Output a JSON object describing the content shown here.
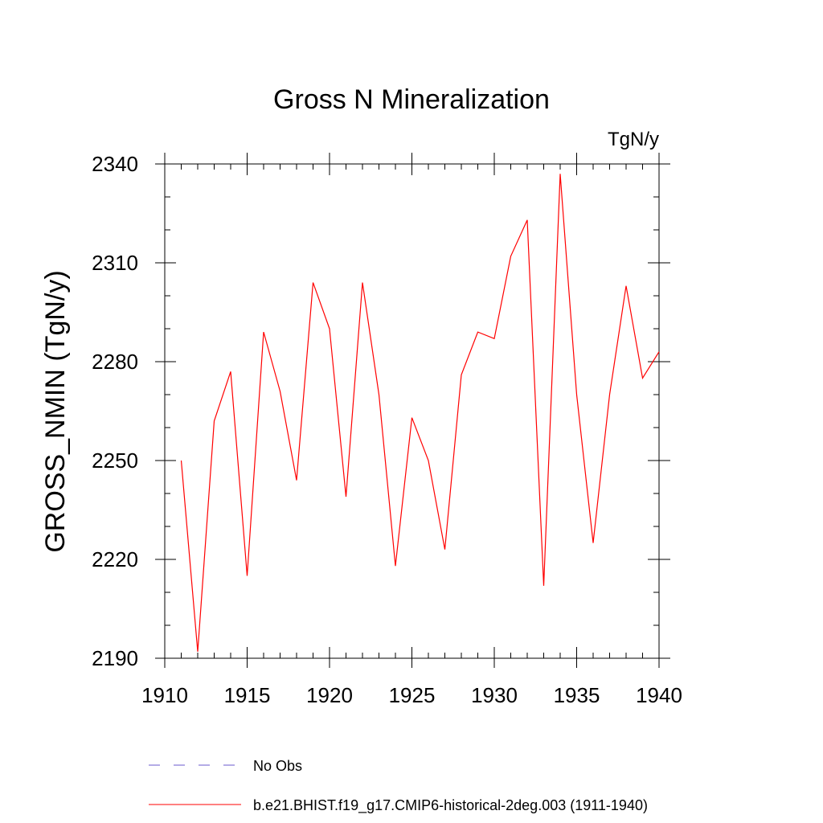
{
  "chart_data": {
    "type": "line",
    "title": "Gross N Mineralization",
    "units_label": "TgN/y",
    "ylabel": "GROSS_NMIN  (TgN/y)",
    "xlabel": "",
    "xlim": [
      1910,
      1940
    ],
    "ylim": [
      2190,
      2340
    ],
    "xticks": [
      1910,
      1915,
      1920,
      1925,
      1930,
      1935,
      1940
    ],
    "yticks": [
      2190,
      2220,
      2250,
      2280,
      2310,
      2340
    ],
    "grid": false,
    "legend_position": "bottom",
    "series": [
      {
        "name": "b.e21.BHIST.f19_g17.CMIP6-historical-2deg.003 (1911-1940)",
        "color": "#ff0000",
        "dash": "solid",
        "x": [
          1911,
          1912,
          1913,
          1914,
          1915,
          1916,
          1917,
          1918,
          1919,
          1920,
          1921,
          1922,
          1923,
          1924,
          1925,
          1926,
          1927,
          1928,
          1929,
          1930,
          1931,
          1932,
          1933,
          1934,
          1935,
          1936,
          1937,
          1938,
          1939,
          1940
        ],
        "y": [
          2250,
          2192,
          2262,
          2277,
          2215,
          2289,
          2271,
          2244,
          2304,
          2290,
          2239,
          2304,
          2270,
          2218,
          2263,
          2250,
          2223,
          2276,
          2289,
          2287,
          2312,
          2323,
          2212,
          2337,
          2270,
          2225,
          2270,
          2303,
          2275,
          2283
        ]
      }
    ],
    "legend": [
      {
        "label": "No Obs",
        "color": "#6a5acd",
        "dash": "dashed"
      },
      {
        "label": "b.e21.BHIST.f19_g17.CMIP6-historical-2deg.003 (1911-1940)",
        "color": "#ff0000",
        "dash": "solid"
      }
    ]
  }
}
